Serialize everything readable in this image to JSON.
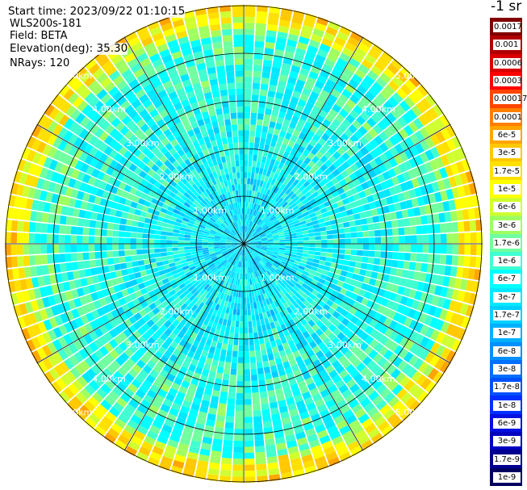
{
  "info": {
    "start_time": "Start time: 2023/09/22 01:10:15",
    "radar": "WLS200s-181",
    "field": "Field: BETA",
    "elevation": "Elevation(deg): 35.30",
    "nrays": "NRays: 120"
  },
  "chart_data": {
    "type": "heatmap",
    "projection": "polar (PPI scan)",
    "field": "BETA",
    "elevation_deg": 35.3,
    "n_rays": 120,
    "range_rings_km": [
      "1.00km",
      "2.00km",
      "3.00km",
      "4.00km",
      "5.00km"
    ],
    "radial_lines_every_deg": 30,
    "colorbar_title": "-1 sr",
    "colorbar_labels": [
      "0.0017",
      "0.001",
      "0.0006",
      "0.0003",
      "0.00017",
      "0.0001",
      "6e-5",
      "3e-5",
      "1.7e-5",
      "1e-5",
      "6e-6",
      "3e-6",
      "1.7e-6",
      "1e-6",
      "6e-7",
      "3e-7",
      "1.7e-7",
      "1e-7",
      "6e-8",
      "3e-8",
      "1.7e-8",
      "1e-8",
      "6e-9",
      "3e-9",
      "1.7e-9",
      "1e-9"
    ],
    "colorbar_colors": [
      "#800000",
      "#b00000",
      "#d80000",
      "#ff0000",
      "#ff4500",
      "#ff7f00",
      "#ffa500",
      "#ffc800",
      "#ffe000",
      "#ffff00",
      "#d0ff30",
      "#a0ff60",
      "#70ffa0",
      "#40ffd0",
      "#00ffff",
      "#00e8ff",
      "#00d0ff",
      "#00b0ff",
      "#0090ff",
      "#0070ff",
      "#0050ff",
      "#0030ff",
      "#0010e0",
      "#0000c0",
      "#000090",
      "#000060"
    ],
    "profile_description": "low backscatter near center increasing to yellow/orange ring near the outer edge",
    "ring_color": "#000000"
  }
}
